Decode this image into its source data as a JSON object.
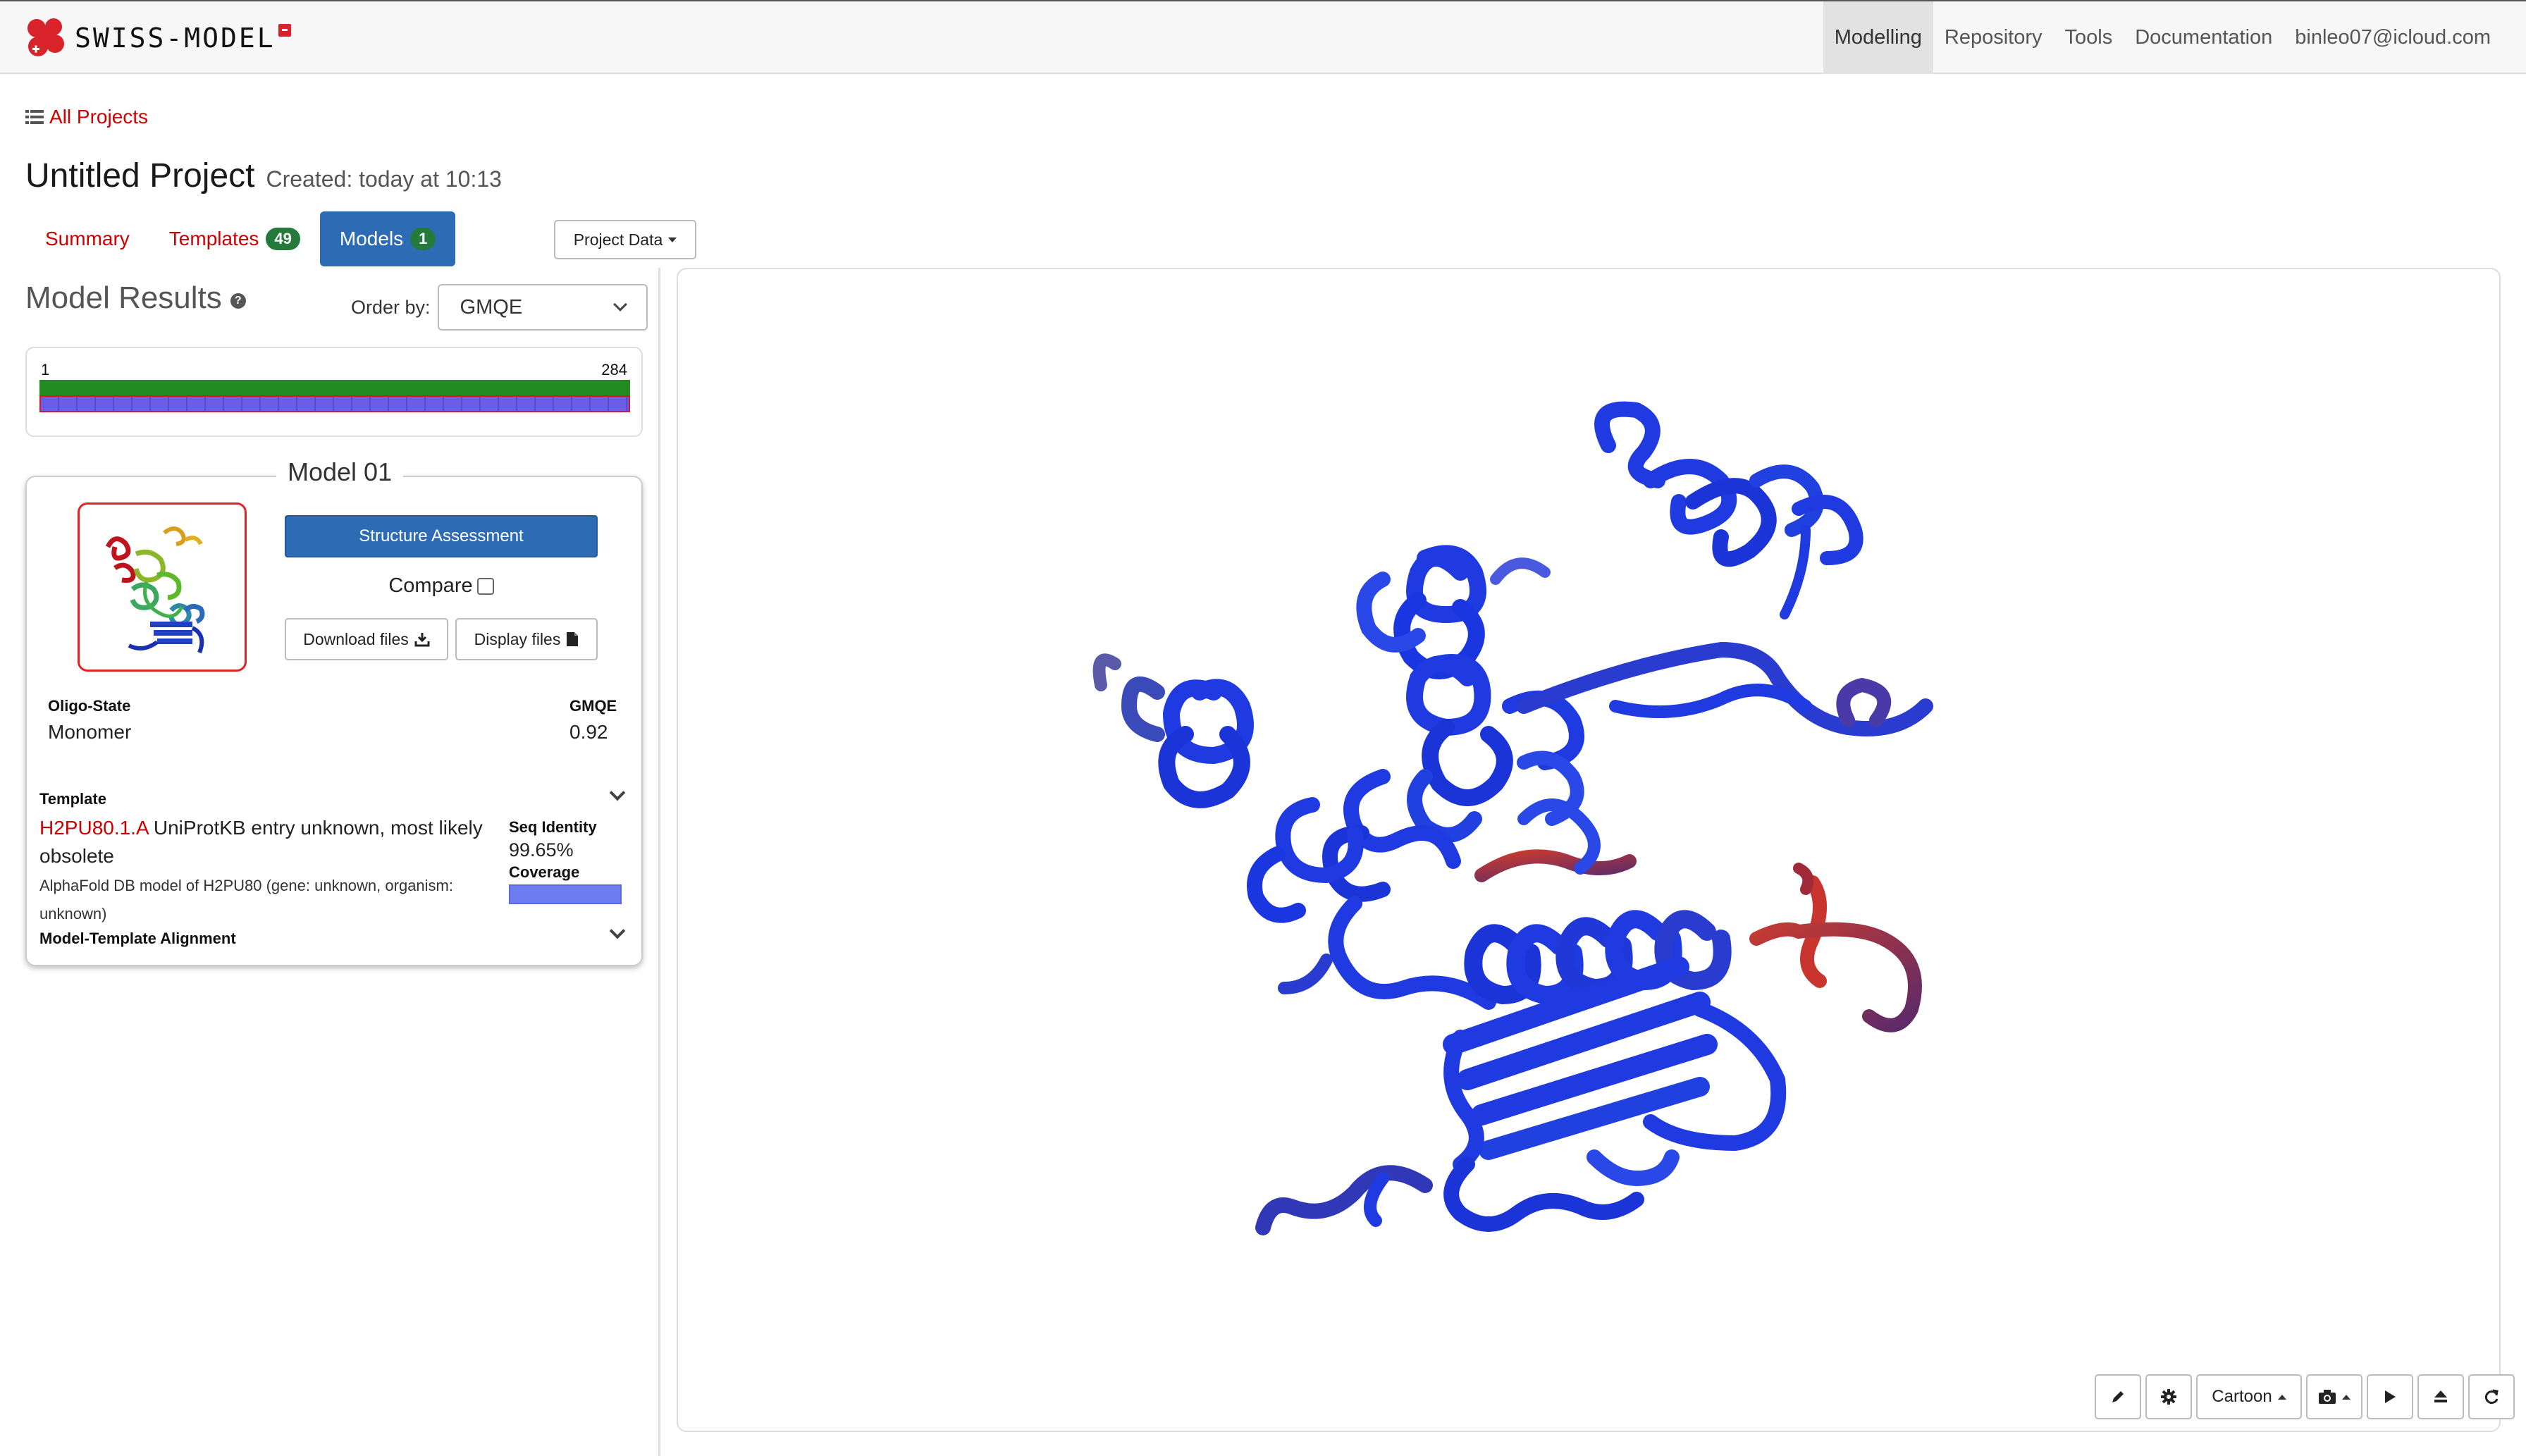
{
  "navbar": {
    "brand": "SWISS-MODEL",
    "items": [
      {
        "label": "Modelling",
        "active": true
      },
      {
        "label": "Repository"
      },
      {
        "label": "Tools"
      },
      {
        "label": "Documentation"
      },
      {
        "label": "binleo07@icloud.com"
      }
    ]
  },
  "breadcrumb": {
    "all_projects": "All Projects"
  },
  "project": {
    "title": "Untitled Project",
    "created": "Created: today at 10:13"
  },
  "tabs": {
    "summary": "Summary",
    "templates": "Templates",
    "templates_count": "49",
    "models": "Models",
    "models_count": "1"
  },
  "project_data_button": "Project Data",
  "results": {
    "heading": "Model Results",
    "help": "?",
    "order_by_label": "Order by:",
    "order_by_value": "GMQE"
  },
  "coverage": {
    "start": "1",
    "end": "284"
  },
  "model": {
    "title": "Model 01",
    "structure_assessment": "Structure Assessment",
    "compare": "Compare",
    "download_files": "Download files",
    "display_files": "Display files",
    "oligo_label": "Oligo-State",
    "oligo_value": "Monomer",
    "gmqe_label": "GMQE",
    "gmqe_value": "0.92",
    "template_label": "Template",
    "template_id": "H2PU80.1.A",
    "template_name": "UniProtKB entry unknown, most likely obsolete",
    "template_desc": "AlphaFold DB model of H2PU80 (gene: unknown, organism: unknown)",
    "seq_identity_label": "Seq Identity",
    "seq_identity_value": "99.65%",
    "coverage_label": "Coverage",
    "alignment_label": "Model-Template Alignment"
  },
  "viewer_toolbar": {
    "pencil": "pencil-icon",
    "settings": "gear-icon",
    "style": "Cartoon",
    "camera": "camera-icon",
    "play": "play-icon",
    "eject": "eject-icon",
    "reset": "refresh-icon"
  },
  "colors": {
    "accent_red": "#cc0000",
    "primary_blue": "#2d6bb5",
    "badge_green": "#237a3b",
    "protein_blue": "#1f3ae0"
  }
}
